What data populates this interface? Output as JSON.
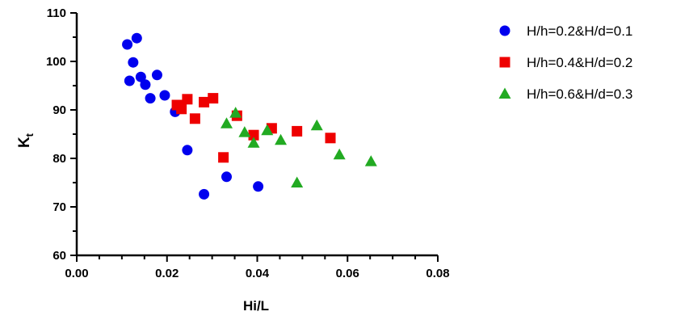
{
  "chart_data": {
    "type": "scatter",
    "xlabel": "Hi/L",
    "ylabel": {
      "main": "K",
      "sub": "t"
    },
    "xlim": [
      0.0,
      0.08
    ],
    "ylim": [
      60,
      110
    ],
    "x_ticks": [
      0.0,
      0.02,
      0.04,
      0.06,
      0.08
    ],
    "x_tick_labels": [
      "0.00",
      "0.02",
      "0.04",
      "0.06",
      "0.08"
    ],
    "y_ticks": [
      60,
      70,
      80,
      90,
      100,
      110
    ],
    "y_tick_labels": [
      "60",
      "70",
      "80",
      "90",
      "100",
      "110"
    ],
    "grid": false,
    "legend_position": "right",
    "series": [
      {
        "name": "H/h=0.2&H/d=0.1",
        "marker": "circle",
        "color": "#0000ee",
        "points": [
          [
            0.0112,
            103.5
          ],
          [
            0.0133,
            104.8
          ],
          [
            0.0117,
            96.0
          ],
          [
            0.0125,
            99.8
          ],
          [
            0.0142,
            96.8
          ],
          [
            0.0152,
            95.2
          ],
          [
            0.0163,
            92.4
          ],
          [
            0.0178,
            97.2
          ],
          [
            0.0195,
            93.0
          ],
          [
            0.0218,
            89.6
          ],
          [
            0.0245,
            81.7
          ],
          [
            0.0282,
            72.6
          ],
          [
            0.0332,
            76.2
          ],
          [
            0.0402,
            74.2
          ]
        ]
      },
      {
        "name": "H/h=0.4&H/d=0.2",
        "marker": "square",
        "color": "#ee0000",
        "points": [
          [
            0.0222,
            91.0
          ],
          [
            0.0232,
            90.2
          ],
          [
            0.0245,
            92.2
          ],
          [
            0.0262,
            88.2
          ],
          [
            0.0282,
            91.6
          ],
          [
            0.0302,
            92.4
          ],
          [
            0.0325,
            80.2
          ],
          [
            0.0355,
            88.8
          ],
          [
            0.0392,
            84.8
          ],
          [
            0.0432,
            86.2
          ],
          [
            0.0488,
            85.6
          ],
          [
            0.0562,
            84.2
          ]
        ]
      },
      {
        "name": "H/h=0.6&H/d=0.3",
        "marker": "triangle",
        "color": "#22aa22",
        "points": [
          [
            0.0332,
            87.2
          ],
          [
            0.0352,
            89.4
          ],
          [
            0.0372,
            85.4
          ],
          [
            0.0392,
            83.2
          ],
          [
            0.0422,
            85.8
          ],
          [
            0.0452,
            83.8
          ],
          [
            0.0488,
            75.0
          ],
          [
            0.0532,
            86.8
          ],
          [
            0.0582,
            80.8
          ],
          [
            0.0652,
            79.4
          ]
        ]
      }
    ]
  }
}
